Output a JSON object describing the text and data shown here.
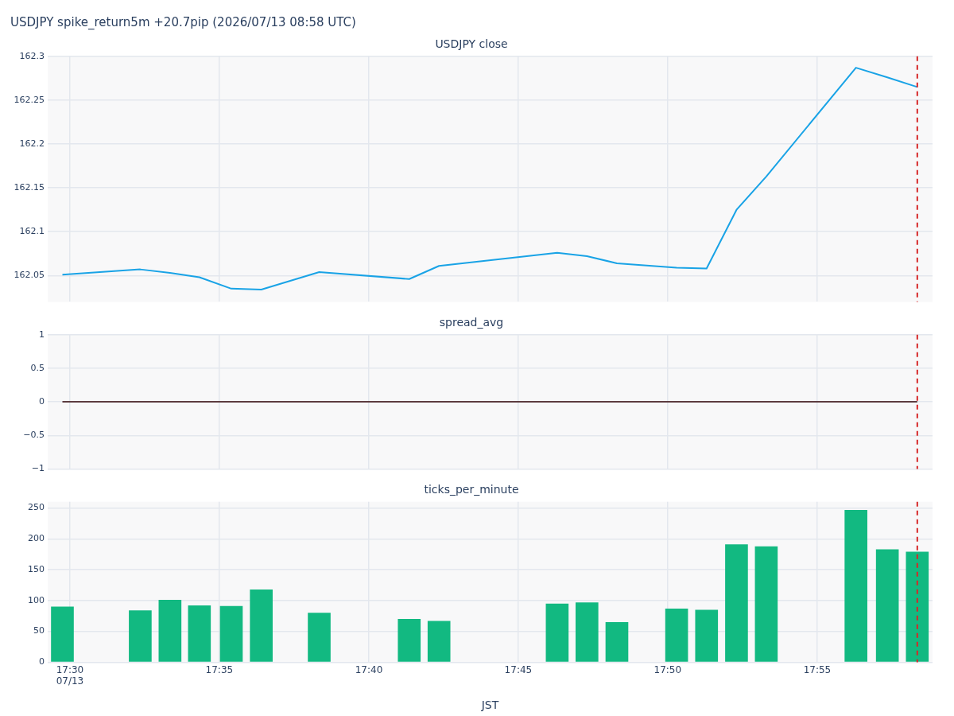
{
  "chart_data": [
    {
      "type": "line",
      "title": "USDJPY spike_return5m +20.7pip (2026/07/13 08:58 UTC)",
      "subtitle": "USDJPY close",
      "x": [
        17.4958,
        17.5392,
        17.5558,
        17.5722,
        17.59,
        17.6067,
        17.639,
        17.6892,
        17.7058,
        17.7717,
        17.7883,
        17.805,
        17.8383,
        17.855,
        17.8717,
        17.8883,
        17.9383,
        17.9558,
        17.9725
      ],
      "values": [
        162.051,
        162.057,
        162.053,
        162.048,
        162.035,
        162.034,
        162.054,
        162.046,
        162.061,
        162.076,
        162.072,
        162.064,
        162.059,
        162.058,
        162.125,
        162.163,
        162.287,
        162.276,
        162.265
      ],
      "color": "#19a3e6",
      "xlim": [
        17.4876,
        17.981
      ],
      "xticks": [
        {
          "value": 17.5,
          "label": null
        },
        {
          "value": 17.5833,
          "label": null
        },
        {
          "value": 17.6667,
          "label": null
        },
        {
          "value": 17.75,
          "label": null
        },
        {
          "value": 17.8333,
          "label": null
        },
        {
          "value": 17.9167,
          "label": null
        }
      ],
      "ylim": [
        162.02,
        162.3
      ],
      "yticks": [
        162.05,
        162.1,
        162.15,
        162.2,
        162.25,
        162.3
      ],
      "grid": true,
      "tick_labels": "y",
      "ref_lines": [
        {
          "axis": "x",
          "value": 17.9725,
          "color": "#d62728",
          "line_style": "dashed"
        }
      ]
    },
    {
      "type": "line",
      "title": "spread_avg",
      "x": [
        17.4958,
        17.5392,
        17.5558,
        17.5722,
        17.59,
        17.6067,
        17.639,
        17.6892,
        17.7058,
        17.7717,
        17.7883,
        17.805,
        17.8383,
        17.855,
        17.8717,
        17.8883,
        17.9383,
        17.9558,
        17.9725
      ],
      "values": [
        0,
        0,
        0,
        0,
        0,
        0,
        0,
        0,
        0,
        0,
        0,
        0,
        0,
        0,
        0,
        0,
        0,
        0,
        0
      ],
      "color": "#5c3c40",
      "xlim": [
        17.4876,
        17.981
      ],
      "xticks": [
        {
          "value": 17.5,
          "label": null
        },
        {
          "value": 17.5833,
          "label": null
        },
        {
          "value": 17.6667,
          "label": null
        },
        {
          "value": 17.75,
          "label": null
        },
        {
          "value": 17.8333,
          "label": null
        },
        {
          "value": 17.9167,
          "label": null
        }
      ],
      "ylim": [
        -1,
        1
      ],
      "yticks": [
        {
          "value": -1,
          "label": "−1"
        },
        {
          "value": -0.5,
          "label": "−0.5"
        },
        0,
        0.5,
        1
      ],
      "grid": true,
      "tick_labels": "y",
      "ref_lines": [
        {
          "axis": "x",
          "value": 17.9725,
          "color": "#d62728",
          "line_style": "dashed"
        }
      ]
    },
    {
      "type": "bar",
      "title": "ticks_per_minute",
      "xlabel": "JST",
      "x": [
        17.4958,
        17.5392,
        17.5558,
        17.5722,
        17.59,
        17.6067,
        17.639,
        17.6892,
        17.7058,
        17.7717,
        17.7883,
        17.805,
        17.8383,
        17.855,
        17.8717,
        17.8883,
        17.9383,
        17.9558,
        17.9725
      ],
      "values": [
        90,
        84,
        101,
        92,
        91,
        118,
        80,
        70,
        67,
        95,
        97,
        65,
        87,
        85,
        191,
        188,
        247,
        183,
        179
      ],
      "color": "#12b981",
      "xlim": [
        17.4876,
        17.981
      ],
      "xticks": [
        {
          "value": 17.5,
          "label": "17:30\n07/13"
        },
        {
          "value": 17.5833,
          "label": "17:35"
        },
        {
          "value": 17.6667,
          "label": "17:40"
        },
        {
          "value": 17.75,
          "label": "17:45"
        },
        {
          "value": 17.8333,
          "label": "17:50"
        },
        {
          "value": 17.9167,
          "label": "17:55"
        }
      ],
      "ylim": [
        0,
        260
      ],
      "yticks": [
        0,
        50,
        100,
        150,
        200,
        250
      ],
      "grid": true,
      "ref_lines": [
        {
          "axis": "x",
          "value": 17.9725,
          "color": "#d62728",
          "line_style": "dashed"
        }
      ]
    }
  ]
}
